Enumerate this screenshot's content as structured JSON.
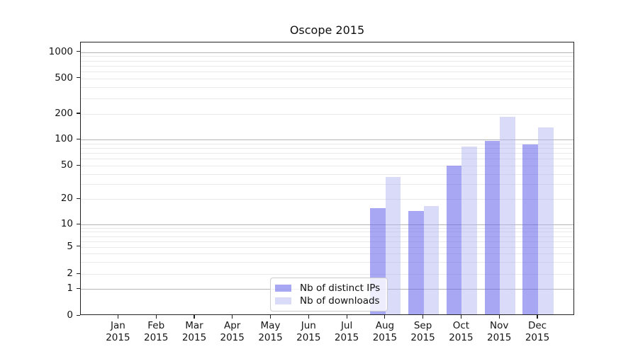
{
  "title": "Oscope 2015",
  "chart_data": {
    "type": "bar",
    "title": "Oscope 2015",
    "categories": [
      "Jan",
      "Feb",
      "Mar",
      "Apr",
      "May",
      "Jun",
      "Jul",
      "Aug",
      "Sep",
      "Oct",
      "Nov",
      "Dec"
    ],
    "year_label": "2015",
    "series": [
      {
        "name": "Nb of distinct IPs",
        "fill": "rgba(95,95,235,0.55)",
        "approx_solid": "#a7a7f4",
        "values": [
          0,
          0,
          0,
          0,
          0,
          0,
          0,
          15,
          14,
          48,
          92,
          84
        ]
      },
      {
        "name": "Nb of downloads",
        "fill": "rgba(178,178,242,0.48)",
        "approx_solid": "#dadaf9",
        "values": [
          0,
          0,
          0,
          0,
          0,
          0,
          0,
          35,
          16,
          80,
          178,
          134
        ]
      }
    ],
    "yscale": "symlog",
    "ytick_labels": [
      "0",
      "1",
      "2",
      "5",
      "10",
      "20",
      "50",
      "100",
      "200",
      "500",
      "1000"
    ],
    "yticks": [
      0,
      1,
      2,
      5,
      10,
      20,
      50,
      100,
      200,
      500,
      1000
    ],
    "ylim": [
      0,
      1300
    ],
    "grid": "horizontal; light minor lines at 2-9 per decade, darker lines at powers of 10",
    "legend_position": "inside plot, lower center-left",
    "xlabel": "",
    "ylabel": ""
  },
  "legend": {
    "items": [
      {
        "label": "Nb of distinct IPs"
      },
      {
        "label": "Nb of downloads"
      }
    ]
  },
  "colors": {
    "background": "#ffffff",
    "spine": "#222222",
    "grid_minor": "#e9e9e9",
    "grid_major": "#b5b5b5",
    "bar_distinct_ips": "rgba(95,95,235,0.55)",
    "bar_downloads": "rgba(178,178,242,0.48)",
    "legend_border": "#cccccc",
    "text": "#151515"
  }
}
